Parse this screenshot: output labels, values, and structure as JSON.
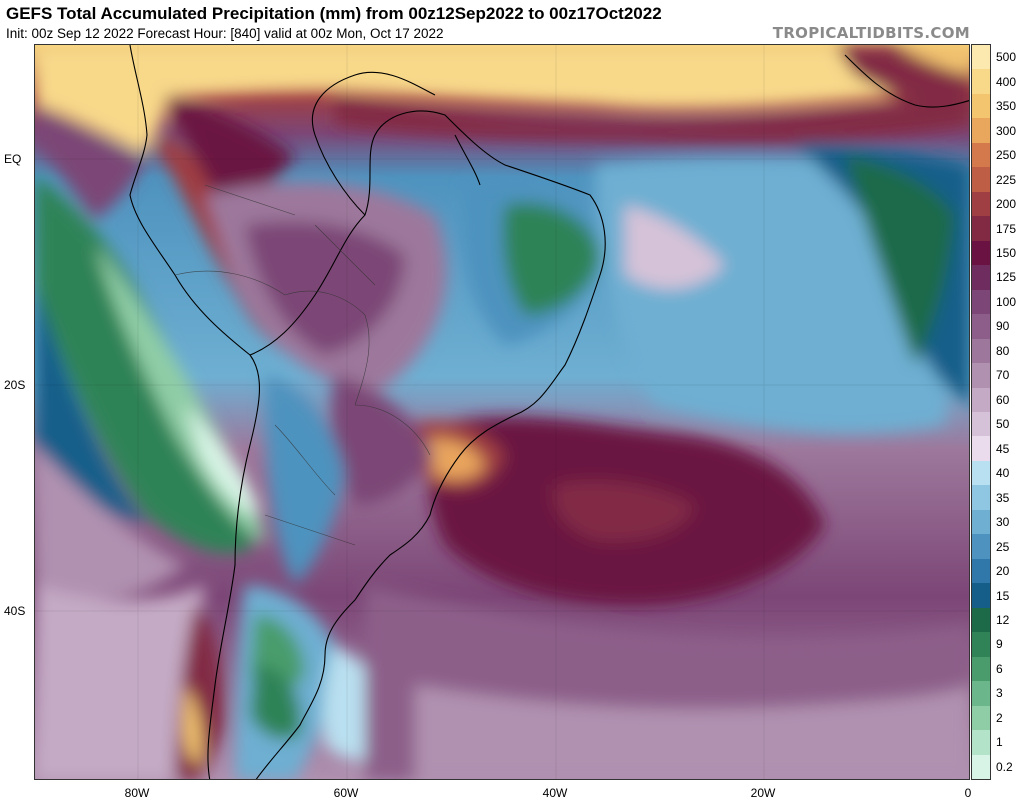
{
  "header": {
    "title": "GEFS Total Accumulated Precipitation (mm) from 00z12Sep2022 to 00z17Oct2022",
    "subtitle": "Init: 00z Sep 12 2022   Forecast Hour: [840]   valid at 00z Mon, Oct 17 2022",
    "brand": "TROPICALTIDBITS.COM"
  },
  "map": {
    "y_ticks": [
      "EQ",
      "20S",
      "40S"
    ],
    "x_ticks": [
      "80W",
      "60W",
      "40W",
      "20W",
      "0"
    ]
  },
  "colorbar": {
    "labels": [
      "500",
      "400",
      "350",
      "300",
      "250",
      "225",
      "200",
      "175",
      "150",
      "125",
      "100",
      "90",
      "80",
      "70",
      "60",
      "50",
      "45",
      "40",
      "35",
      "30",
      "25",
      "20",
      "15",
      "12",
      "9",
      "6",
      "3",
      "2",
      "1",
      "0.2"
    ],
    "colors": [
      "#fce9b0",
      "#f8d98a",
      "#f3c56f",
      "#e9a65d",
      "#d3794b",
      "#bd5e45",
      "#9f3e43",
      "#822a44",
      "#6a1242",
      "#6e2c5f",
      "#7c4676",
      "#8c5e89",
      "#9d789c",
      "#b091b0",
      "#c4aac5",
      "#d6c2d8",
      "#eadcec",
      "#b9e0f0",
      "#8fc6e2",
      "#6eafd2",
      "#4e93bf",
      "#2f78a9",
      "#165e8a",
      "#1d6a48",
      "#2f8356",
      "#4a9c6c",
      "#6bb68a",
      "#8fcda6",
      "#b3e3c8",
      "#d8f4e6"
    ]
  }
}
